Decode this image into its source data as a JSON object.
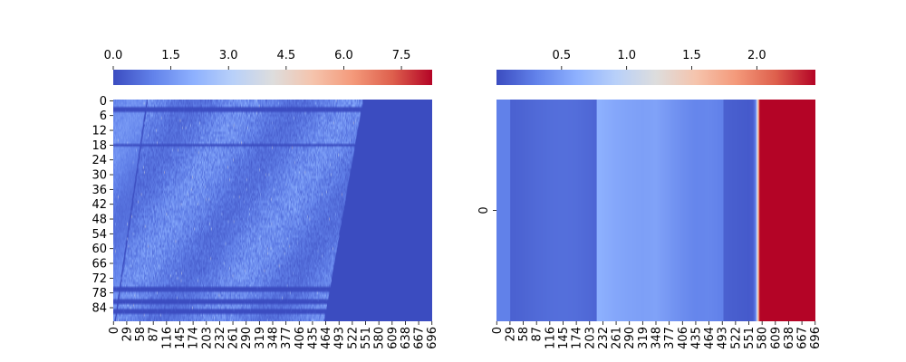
{
  "chart_data": [
    {
      "type": "heatmap",
      "panel": "left",
      "colormap": "coolwarm",
      "colorbar": {
        "placement": "top",
        "range": [
          0.0,
          8.3
        ],
        "ticks": [
          0.0,
          1.5,
          3.0,
          4.5,
          6.0,
          7.5
        ],
        "tick_labels": [
          "0.0",
          "1.5",
          "3.0",
          "4.5",
          "6.0",
          "7.5"
        ]
      },
      "x_range": [
        0,
        697
      ],
      "y_range": [
        0,
        90
      ],
      "x_tick_values": [
        0,
        29,
        58,
        87,
        116,
        145,
        174,
        203,
        232,
        261,
        290,
        319,
        348,
        377,
        406,
        435,
        464,
        493,
        522,
        551,
        580,
        609,
        638,
        667,
        696
      ],
      "x_tick_labels": [
        "0",
        "29",
        "58",
        "87",
        "116",
        "145",
        "174",
        "203",
        "232",
        "261",
        "290",
        "319",
        "348",
        "377",
        "406",
        "435",
        "464",
        "493",
        "522",
        "551",
        "580",
        "609",
        "638",
        "667",
        "696"
      ],
      "y_tick_values": [
        0,
        6,
        12,
        18,
        24,
        30,
        36,
        42,
        48,
        54,
        60,
        66,
        72,
        78,
        84
      ],
      "y_tick_labels": [
        "0",
        "6",
        "12",
        "18",
        "24",
        "30",
        "36",
        "42",
        "48",
        "54",
        "60",
        "66",
        "72",
        "78",
        "84"
      ],
      "data_extent": {
        "filled_until_col_at_row0": 545,
        "filled_until_col_at_row90": 460,
        "leading_edge_col_at_row0": 75,
        "leading_edge_col_at_row90": 5,
        "zero_rows": [
          3,
          4,
          18,
          76,
          77,
          81,
          82,
          85,
          86
        ],
        "typical_value": 1.0,
        "max_value": 8.3
      }
    },
    {
      "type": "heatmap",
      "panel": "right",
      "colormap": "coolwarm",
      "colorbar": {
        "placement": "top",
        "range": [
          0.0,
          2.45
        ],
        "ticks": [
          0.5,
          1.0,
          1.5,
          2.0
        ],
        "tick_labels": [
          "0.5",
          "1.0",
          "1.5",
          "2.0"
        ]
      },
      "x_range": [
        0,
        697
      ],
      "y_range": [
        0,
        1
      ],
      "x_tick_values": [
        0,
        29,
        58,
        87,
        116,
        145,
        174,
        203,
        232,
        261,
        290,
        319,
        348,
        377,
        406,
        435,
        464,
        493,
        522,
        551,
        580,
        609,
        638,
        667,
        696
      ],
      "x_tick_labels": [
        "0",
        "29",
        "58",
        "87",
        "116",
        "145",
        "174",
        "203",
        "232",
        "261",
        "290",
        "319",
        "348",
        "377",
        "406",
        "435",
        "464",
        "493",
        "522",
        "551",
        "580",
        "609",
        "638",
        "667",
        "696"
      ],
      "y_tick_values": [
        0.5
      ],
      "y_tick_labels": [
        "0"
      ],
      "profile": {
        "x": [
          0,
          29,
          30,
          58,
          87,
          116,
          145,
          174,
          203,
          218,
          219,
          232,
          261,
          290,
          319,
          348,
          377,
          406,
          435,
          464,
          493,
          495,
          496,
          522,
          551,
          560,
          566,
          568,
          570,
          573,
          575,
          696
        ],
        "values": [
          0.3,
          0.3,
          0.12,
          0.14,
          0.17,
          0.19,
          0.2,
          0.19,
          0.16,
          0.14,
          0.62,
          0.6,
          0.55,
          0.52,
          0.5,
          0.52,
          0.45,
          0.38,
          0.33,
          0.34,
          0.3,
          0.3,
          0.12,
          0.1,
          0.08,
          0.1,
          0.3,
          0.8,
          1.3,
          2.0,
          2.45,
          2.45
        ]
      }
    }
  ]
}
